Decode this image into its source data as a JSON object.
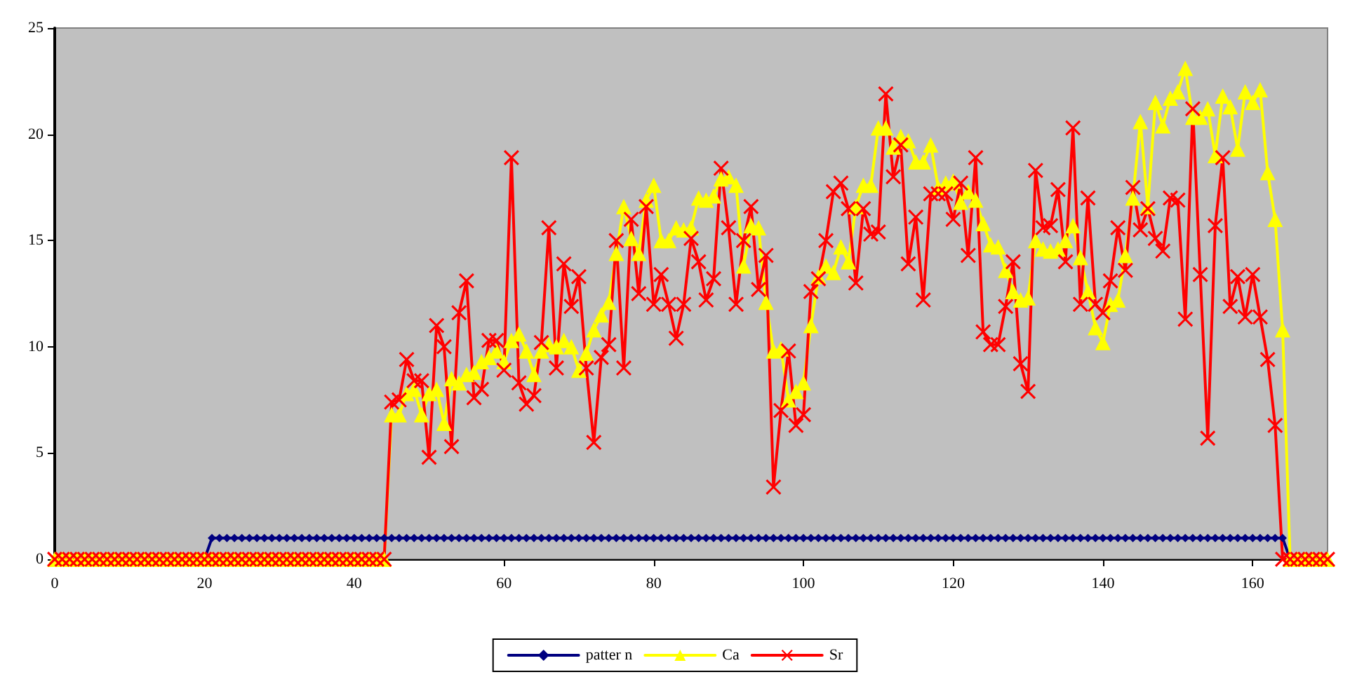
{
  "chart_data": {
    "type": "line",
    "x": [
      0,
      1,
      2,
      3,
      4,
      5,
      6,
      7,
      8,
      9,
      10,
      11,
      12,
      13,
      14,
      15,
      16,
      17,
      18,
      19,
      20,
      21,
      22,
      23,
      24,
      25,
      26,
      27,
      28,
      29,
      30,
      31,
      32,
      33,
      34,
      35,
      36,
      37,
      38,
      39,
      40,
      41,
      42,
      43,
      44,
      45,
      46,
      47,
      48,
      49,
      50,
      51,
      52,
      53,
      54,
      55,
      56,
      57,
      58,
      59,
      60,
      61,
      62,
      63,
      64,
      65,
      66,
      67,
      68,
      69,
      70,
      71,
      72,
      73,
      74,
      75,
      76,
      77,
      78,
      79,
      80,
      81,
      82,
      83,
      84,
      85,
      86,
      87,
      88,
      89,
      90,
      91,
      92,
      93,
      94,
      95,
      96,
      97,
      98,
      99,
      100,
      101,
      102,
      103,
      104,
      105,
      106,
      107,
      108,
      109,
      110,
      111,
      112,
      113,
      114,
      115,
      116,
      117,
      118,
      119,
      120,
      121,
      122,
      123,
      124,
      125,
      126,
      127,
      128,
      129,
      130,
      131,
      132,
      133,
      134,
      135,
      136,
      137,
      138,
      139,
      140,
      141,
      142,
      143,
      144,
      145,
      146,
      147,
      148,
      149,
      150,
      151,
      152,
      153,
      154,
      155,
      156,
      157,
      158,
      159,
      160,
      161,
      162,
      163,
      164,
      165,
      166,
      167,
      168,
      169,
      170
    ],
    "series": [
      {
        "name": "patter n",
        "color": "#000080",
        "marker": "diamond",
        "values": [
          null,
          null,
          null,
          null,
          null,
          null,
          null,
          null,
          null,
          null,
          null,
          null,
          null,
          null,
          null,
          null,
          null,
          null,
          null,
          0,
          0,
          1,
          1,
          1,
          1,
          1,
          1,
          1,
          1,
          1,
          1,
          1,
          1,
          1,
          1,
          1,
          1,
          1,
          1,
          1,
          1,
          1,
          1,
          1,
          1,
          1,
          1,
          1,
          1,
          1,
          1,
          1,
          1,
          1,
          1,
          1,
          1,
          1,
          1,
          1,
          1,
          1,
          1,
          1,
          1,
          1,
          1,
          1,
          1,
          1,
          1,
          1,
          1,
          1,
          1,
          1,
          1,
          1,
          1,
          1,
          1,
          1,
          1,
          1,
          1,
          1,
          1,
          1,
          1,
          1,
          1,
          1,
          1,
          1,
          1,
          1,
          1,
          1,
          1,
          1,
          1,
          1,
          1,
          1,
          1,
          1,
          1,
          1,
          1,
          1,
          1,
          1,
          1,
          1,
          1,
          1,
          1,
          1,
          1,
          1,
          1,
          1,
          1,
          1,
          1,
          1,
          1,
          1,
          1,
          1,
          1,
          1,
          1,
          1,
          1,
          1,
          1,
          1,
          1,
          1,
          1,
          1,
          1,
          1,
          1,
          1,
          1,
          1,
          1,
          1,
          1,
          1,
          1,
          1,
          1,
          1,
          1,
          1,
          1,
          1,
          1,
          1,
          1,
          1,
          1,
          0,
          0,
          null,
          null,
          null,
          null
        ]
      },
      {
        "name": "Ca",
        "color": "#ffff00",
        "marker": "triangle",
        "values": [
          0,
          0,
          0,
          0,
          0,
          0,
          0,
          0,
          0,
          0,
          0,
          0,
          0,
          0,
          0,
          0,
          0,
          0,
          0,
          0,
          0,
          0,
          0,
          0,
          0,
          0,
          0,
          0,
          0,
          0,
          0,
          0,
          0,
          0,
          0,
          0,
          0,
          0,
          0,
          0,
          0,
          0,
          0,
          0,
          0,
          6.8,
          6.8,
          7.8,
          8.0,
          6.8,
          7.8,
          8.0,
          6.4,
          8.5,
          8.3,
          8.7,
          8.8,
          9.3,
          9.5,
          9.8,
          9.3,
          10.3,
          10.6,
          9.8,
          8.7,
          9.8,
          10.1,
          10.0,
          10.3,
          10.0,
          8.9,
          9.7,
          10.8,
          11.5,
          12.1,
          14.4,
          16.6,
          15.1,
          14.4,
          16.9,
          17.6,
          15.0,
          15.0,
          15.6,
          15.5,
          15.6,
          17.0,
          16.9,
          17.1,
          17.9,
          18.0,
          17.6,
          13.8,
          15.7,
          15.6,
          12.1,
          9.8,
          9.9,
          7.5,
          7.9,
          8.3,
          11.0,
          13.3,
          13.8,
          13.5,
          14.7,
          14.0,
          16.6,
          17.6,
          17.6,
          20.3,
          20.3,
          19.4,
          19.9,
          19.7,
          18.7,
          18.7,
          19.5,
          17.5,
          17.7,
          17.8,
          16.8,
          17.3,
          16.9,
          15.8,
          14.8,
          14.7,
          13.6,
          12.6,
          12.2,
          12.3,
          15.0,
          14.6,
          14.5,
          14.6,
          15.0,
          15.7,
          14.2,
          12.6,
          10.9,
          10.2,
          12.0,
          12.2,
          14.3,
          17.0,
          20.6,
          16.6,
          21.5,
          20.4,
          21.7,
          22.0,
          23.1,
          20.8,
          20.8,
          21.2,
          19.0,
          21.8,
          21.3,
          19.3,
          22.0,
          21.5,
          22.1,
          18.2,
          16.0,
          10.8,
          0,
          0,
          0,
          0,
          0,
          0
        ]
      },
      {
        "name": "Sr",
        "color": "#ff0000",
        "marker": "cross",
        "values": [
          0,
          0,
          0,
          0,
          0,
          0,
          0,
          0,
          0,
          0,
          0,
          0,
          0,
          0,
          0,
          0,
          0,
          0,
          0,
          0,
          0,
          0,
          0,
          0,
          0,
          0,
          0,
          0,
          0,
          0,
          0,
          0,
          0,
          0,
          0,
          0,
          0,
          0,
          0,
          0,
          0,
          0,
          0,
          0,
          0,
          7.4,
          7.5,
          9.4,
          8.4,
          8.4,
          4.8,
          11.0,
          10.0,
          5.3,
          11.6,
          13.1,
          7.6,
          8.0,
          10.3,
          10.3,
          8.9,
          18.9,
          8.3,
          7.3,
          7.7,
          10.2,
          15.6,
          9.0,
          13.9,
          11.9,
          13.3,
          9.0,
          5.5,
          9.5,
          10.1,
          15.0,
          9.0,
          16.0,
          12.5,
          16.6,
          12.0,
          13.4,
          12.0,
          10.4,
          12.0,
          15.1,
          14.0,
          12.2,
          13.2,
          18.4,
          15.6,
          12.0,
          15.0,
          16.6,
          12.7,
          14.3,
          3.4,
          7.0,
          9.8,
          6.3,
          6.8,
          12.6,
          13.2,
          15.0,
          17.3,
          17.7,
          16.5,
          13.0,
          16.5,
          15.3,
          15.4,
          21.9,
          18.0,
          19.5,
          13.9,
          16.1,
          12.2,
          17.2,
          17.2,
          17.2,
          16.0,
          17.7,
          14.3,
          18.9,
          10.7,
          10.1,
          10.1,
          11.9,
          14.0,
          9.2,
          7.9,
          18.3,
          15.6,
          15.7,
          17.4,
          14.0,
          20.3,
          12.0,
          17.0,
          12.0,
          11.6,
          13.1,
          15.6,
          13.6,
          17.5,
          15.5,
          16.5,
          15.1,
          14.5,
          17.0,
          16.9,
          11.3,
          21.2,
          13.4,
          5.7,
          15.7,
          18.9,
          11.9,
          13.3,
          11.4,
          13.4,
          11.4,
          9.4,
          6.3,
          0,
          0,
          0,
          0,
          0,
          0,
          0
        ]
      }
    ],
    "xlim": [
      0,
      170
    ],
    "xticks": [
      0,
      20,
      40,
      60,
      80,
      100,
      120,
      140,
      160
    ],
    "ylim": [
      0,
      25
    ],
    "yticks": [
      0,
      5,
      10,
      15,
      20,
      25
    ],
    "grid": false,
    "legend": "bottom",
    "line_style": "solid"
  }
}
